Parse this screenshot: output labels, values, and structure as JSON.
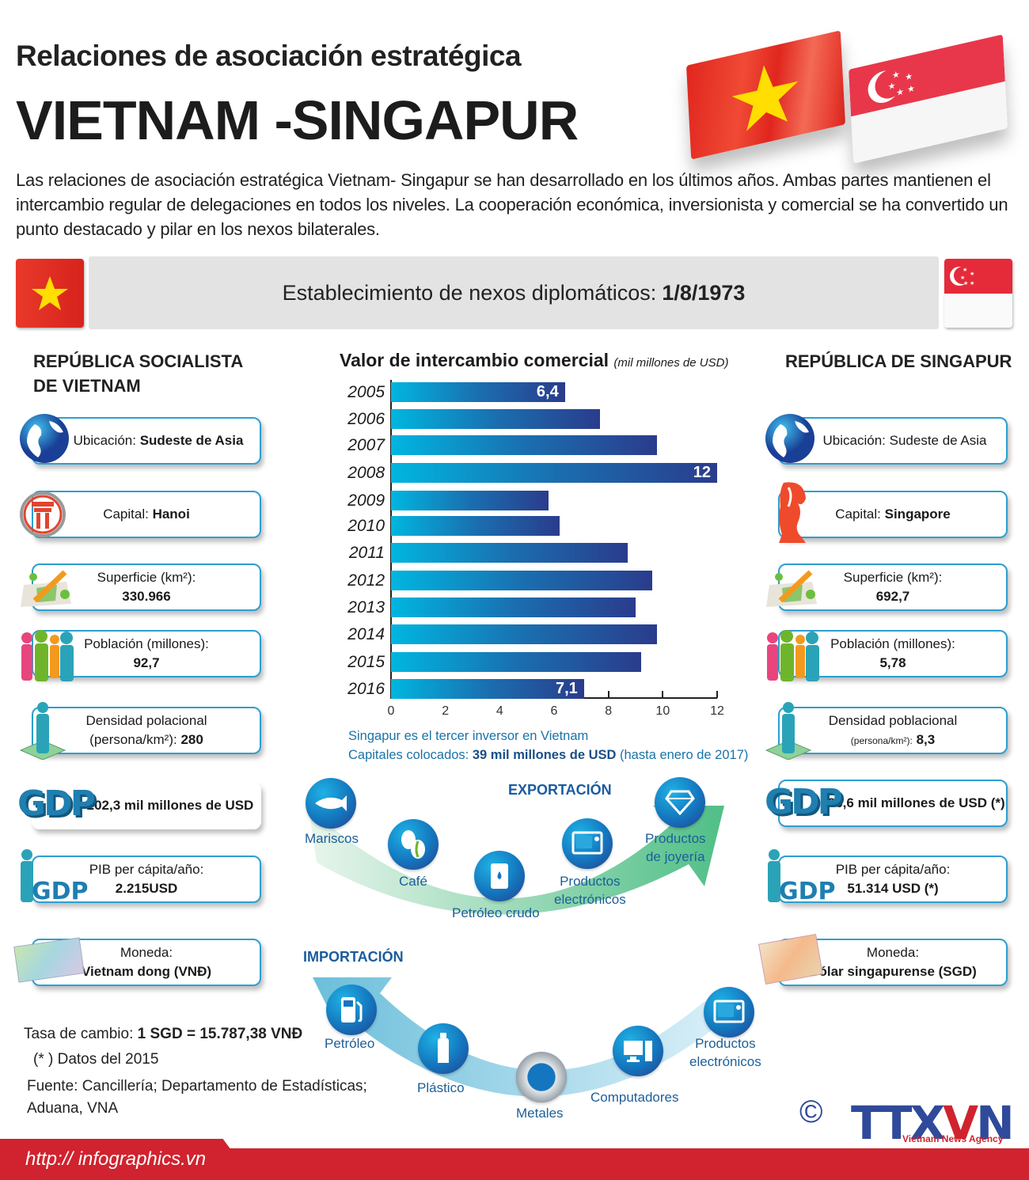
{
  "header": {
    "subtitle": "Relaciones de asociación estratégica",
    "title": "VIETNAM -SINGAPUR",
    "intro": "Las relaciones de asociación estratégica Vietnam- Singapur se han desarrollado en los últimos años. Ambas partes mantienen el intercambio regular de delegaciones en todos los niveles. La cooperación económica, inversionista y comercial se ha convertido un punto destacado y pilar en los nexos bilaterales."
  },
  "diplomatic": {
    "label": "Establecimiento de nexos diplomáticos:",
    "date": "1/8/1973"
  },
  "vietnam": {
    "heading_line1": "REPÚBLICA SOCIALISTA",
    "heading_line2": "DE VIETNAM",
    "cards": [
      {
        "icon": "globe-icon",
        "label": "Ubicación:",
        "value": "Sudeste de Asia"
      },
      {
        "icon": "hanoi-gate-icon",
        "label": "Capital:",
        "value": "Hanoi"
      },
      {
        "icon": "map-pencil-icon",
        "label": "Superficie (km²):",
        "value": "330.966"
      },
      {
        "icon": "people-icon",
        "label": "Población (millones):",
        "value": "92,7"
      },
      {
        "icon": "person-area-icon",
        "label": "Densidad polacional",
        "label2": "(persona/km²):",
        "value": "280"
      },
      {
        "icon": "gdp-icon",
        "label": "",
        "value": "202,3 mil millones de USD"
      },
      {
        "icon": "gdp-person-icon",
        "label": "PIB per cápita/año:",
        "value": "2.215USD"
      },
      {
        "icon": "vnd-banknote-icon",
        "label": "Moneda:",
        "value": "Vietnam dong (VNĐ)"
      }
    ]
  },
  "singapore": {
    "heading": "REPÚBLICA DE SINGAPUR",
    "cards": [
      {
        "icon": "globe-icon",
        "label": "Ubicación: Sudeste de Asia",
        "value": ""
      },
      {
        "icon": "merlion-icon",
        "label": "Capital:",
        "value": "Singapore"
      },
      {
        "icon": "map-pencil-icon",
        "label": "Superficie (km²):",
        "value": "692,7"
      },
      {
        "icon": "people-icon",
        "label": "Población (millones):",
        "value": "5,78"
      },
      {
        "icon": "person-area-icon",
        "label": "Densidad poblacional",
        "label2": "(persona/km²):",
        "value": "8,3"
      },
      {
        "icon": "gdp-icon",
        "label": "",
        "value": "296,6 mil millones de USD (*)"
      },
      {
        "icon": "gdp-person-icon",
        "label": "PIB per cápita/año:",
        "value": "51.314 USD (*)"
      },
      {
        "icon": "sgd-banknote-icon",
        "label": "Moneda:",
        "value": "Dólar singapurense (SGD)"
      }
    ]
  },
  "chart_data": {
    "type": "bar",
    "orientation": "horizontal",
    "title": "Valor de intercambio comercial",
    "unit": "(mil millones de USD)",
    "categories": [
      "2005",
      "2006",
      "2007",
      "2008",
      "2009",
      "2010",
      "2011",
      "2012",
      "2013",
      "2014",
      "2015",
      "2016"
    ],
    "values": [
      6.4,
      7.7,
      9.8,
      12,
      5.8,
      6.2,
      8.7,
      9.6,
      9.0,
      9.8,
      9.2,
      7.1
    ],
    "data_labels": {
      "2005": "6,4",
      "2008": "12",
      "2016": "7,1"
    },
    "xticks": [
      "0",
      "2",
      "4",
      "6",
      "8",
      "10",
      "12"
    ],
    "xlim": [
      0,
      12
    ],
    "xlabel": "",
    "ylabel": "",
    "grid": false,
    "colors": {
      "bar_start": "#00b6e0",
      "bar_end": "#2a3c8c"
    }
  },
  "investment": {
    "line1": "Singapur es el tercer inversor en Vietnam",
    "line2_prefix": "Capitales colocados:",
    "line2_bold": "39 mil millones de USD",
    "line2_suffix": "(hasta enero de 2017)"
  },
  "exports": {
    "heading": "EXPORTACIÓN",
    "items": [
      {
        "icon": "fish-icon",
        "label": "Mariscos"
      },
      {
        "icon": "coffee-bean-icon",
        "label": "Café"
      },
      {
        "icon": "oil-barrel-icon",
        "label": "Petróleo crudo"
      },
      {
        "icon": "electronics-icon",
        "label": "Productos",
        "label2": "electrónicos"
      },
      {
        "icon": "diamond-icon",
        "label": "Productos",
        "label2": "de joyería"
      }
    ]
  },
  "imports": {
    "heading": "IMPORTACIÓN",
    "items": [
      {
        "icon": "fuel-pump-icon",
        "label": "Petróleo"
      },
      {
        "icon": "plastic-bottle-icon",
        "label": "Plástico"
      },
      {
        "icon": "metal-ring-icon",
        "label": "Metales"
      },
      {
        "icon": "computer-icon",
        "label": "Computadores"
      },
      {
        "icon": "electronics-icon",
        "label": "Productos",
        "label2": "electrónicos"
      }
    ]
  },
  "notes": {
    "exchange_label": "Tasa de cambio:",
    "exchange_value": "1 SGD = 15.787,38 VNĐ",
    "data_note": "(* ) Datos del 2015",
    "source_line1": "Fuente: Cancillería; Departamento de Estadísticas;",
    "source_line2": "Aduana, VNA"
  },
  "footer": {
    "url": "http:// infographics.vn",
    "copyright": "©",
    "logo_part1": "TTX",
    "logo_part2": "V",
    "logo_part3": "N",
    "agency": "Vietnam News Agency"
  },
  "colors": {
    "accent_blue": "#2c9fd1",
    "dark_blue": "#1b5c9e",
    "footer_red": "#d0232f",
    "vn_red": "#da251d",
    "sg_red": "#e52a3a",
    "star_yellow": "#ffde00"
  }
}
